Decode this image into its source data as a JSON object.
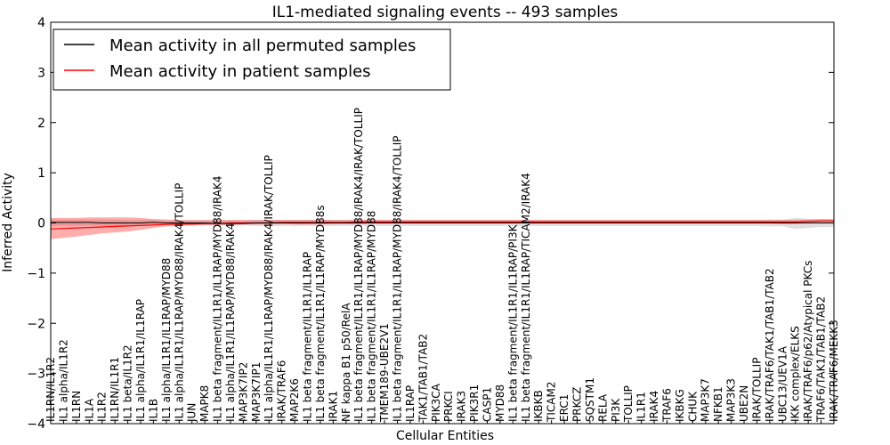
{
  "chart_data": {
    "type": "line",
    "title": "IL1-mediated signaling events -- 493 samples",
    "xlabel": "Cellular Entities",
    "ylabel": "Inferred Activity",
    "ylim": [
      -4,
      4
    ],
    "yticks": [
      -4,
      -3,
      -2,
      -1,
      0,
      1,
      2,
      3,
      4
    ],
    "ytick_labels": [
      "−4",
      "−3",
      "−2",
      "−1",
      "0",
      "1",
      "2",
      "3",
      "4"
    ],
    "grid": false,
    "legend_position": "top-left",
    "categories": [
      "IL1RN/IL1R2",
      "IL1 alpha/IL1R2",
      "IL1RN",
      "IL1A",
      "IL1R2",
      "IL1RN/IL1R1",
      "IL1 beta/IL1R2",
      "IL1 alpha/IL1R1/IL1RAP",
      "IL1B",
      "IL1 alpha/IL1R1/IL1RAP/MYD88",
      "IL1 alpha/IL1R1/IL1RAP/MYD88/IRAK4/TOLLIP",
      "JUN",
      "MAPK8",
      "IL1 beta fragment/IL1R1/IL1RAP/MYD88/IRAK4",
      "IL1 alpha/IL1R1/IL1RAP/MYD88/IRAK4",
      "MAP3K7IP2",
      "MAP3K7IP1",
      "IL1 alpha/IL1R1/IL1RAP/MYD88/IRAK4/IRAK/TOLLIP",
      "IRAK/TRAF6",
      "MAP2K6",
      "IL1 beta fragment/IL1R1/IL1RAP",
      "IL1 beta fragment/IL1R1/IL1RAP/MYD88s",
      "IRAK1",
      "NF kappa B1 p50/RelA",
      "IL1 beta fragment/IL1R1/IL1RAP/MYD88/IRAK4/IRAK/TOLLIP",
      "IL1 beta fragment/IL1R1/IL1RAP/MYD88",
      "TMEM189-UBE2V1",
      "IL1 beta fragment/IL1R1/IL1RAP/MYD88/IRAK4/TOLLIP",
      "IL1RAP",
      "TAK1/TAB1/TAB2",
      "PIK3CA",
      "PRKCI",
      "IRAK3",
      "PIK3R1",
      "CASP1",
      "MYD88",
      "IL1 beta fragment/IL1R1/IL1RAP/PI3K",
      "IL1 beta fragment/IL1R1/IL1RAP/TICAM2/IRAK4",
      "IKBKB",
      "TICAM2",
      "ERC1",
      "PRKCZ",
      "SQSTM1",
      "RELA",
      "PI3K",
      "TOLLIP",
      "IL1R1",
      "IRAK4",
      "TRAF6",
      "IKBKG",
      "CHUK",
      "MAP3K7",
      "NFKB1",
      "MAP3K3",
      "UBE2N",
      "IRAK/TOLLIP",
      "IRAK/TRAF6/TAK1/TAB1/TAB2",
      "UBC13/UEV1A",
      "IKK complex/ELKS",
      "IRAK/TRAF6/p62/Atypical PKCs",
      "TRAF6/TAK1/TAB1/TAB2",
      "IRAK/TRAF6/MEKK3"
    ],
    "series": [
      {
        "name": "Mean activity in all permuted samples",
        "color": "#000000",
        "values": [
          0.01,
          0.01,
          0.01,
          0.01,
          0.0,
          0.0,
          0.0,
          0.0,
          0.01,
          0.0,
          0.0,
          0.0,
          0.0,
          -0.01,
          -0.01,
          -0.01,
          0.0,
          0.0,
          0.0,
          0.0,
          0.0,
          0.0,
          0.0,
          0.0,
          0.0,
          0.0,
          0.0,
          0.0,
          0.0,
          0.0,
          0.0,
          0.0,
          0.0,
          0.0,
          0.0,
          0.0,
          0.0,
          0.0,
          0.0,
          0.0,
          0.0,
          0.0,
          0.0,
          0.0,
          0.0,
          0.0,
          0.0,
          0.0,
          0.0,
          0.0,
          0.0,
          0.0,
          0.0,
          0.0,
          0.0,
          0.0,
          0.0,
          0.0,
          0.0,
          0.0,
          0.0,
          0.0
        ],
        "band_lower": [
          -0.06,
          -0.06,
          -0.06,
          -0.06,
          -0.06,
          -0.06,
          -0.06,
          -0.06,
          -0.05,
          -0.05,
          -0.05,
          -0.05,
          -0.05,
          -0.05,
          -0.05,
          -0.05,
          -0.06,
          -0.06,
          -0.06,
          -0.06,
          -0.06,
          -0.06,
          -0.06,
          -0.06,
          -0.06,
          -0.06,
          -0.06,
          -0.06,
          -0.06,
          -0.06,
          -0.06,
          -0.06,
          -0.06,
          -0.06,
          -0.06,
          -0.06,
          -0.06,
          -0.06,
          -0.06,
          -0.06,
          -0.06,
          -0.06,
          -0.06,
          -0.06,
          -0.06,
          -0.06,
          -0.06,
          -0.06,
          -0.06,
          -0.06,
          -0.06,
          -0.06,
          -0.06,
          -0.06,
          -0.06,
          -0.06,
          -0.07,
          -0.07,
          -0.12,
          -0.1,
          -0.08,
          -0.08
        ],
        "band_upper": [
          0.07,
          0.07,
          0.07,
          0.07,
          0.07,
          0.07,
          0.06,
          0.06,
          0.06,
          0.05,
          0.05,
          0.05,
          0.05,
          0.05,
          0.05,
          0.05,
          0.06,
          0.06,
          0.06,
          0.06,
          0.06,
          0.06,
          0.06,
          0.06,
          0.06,
          0.06,
          0.06,
          0.06,
          0.06,
          0.06,
          0.06,
          0.06,
          0.06,
          0.06,
          0.06,
          0.06,
          0.06,
          0.06,
          0.06,
          0.06,
          0.06,
          0.06,
          0.06,
          0.06,
          0.06,
          0.06,
          0.06,
          0.06,
          0.06,
          0.06,
          0.06,
          0.06,
          0.06,
          0.06,
          0.06,
          0.06,
          0.07,
          0.07,
          0.1,
          0.08,
          0.06,
          0.06
        ]
      },
      {
        "name": "Mean activity in patient samples",
        "color": "#ff0000",
        "values": [
          -0.12,
          -0.11,
          -0.1,
          -0.09,
          -0.08,
          -0.07,
          -0.06,
          -0.05,
          -0.04,
          -0.03,
          -0.02,
          -0.02,
          -0.01,
          -0.01,
          0.0,
          0.0,
          0.0,
          0.0,
          0.01,
          0.01,
          0.01,
          0.01,
          0.01,
          0.01,
          0.02,
          0.02,
          0.02,
          0.02,
          0.02,
          0.02,
          0.02,
          0.02,
          0.02,
          0.02,
          0.02,
          0.02,
          0.02,
          0.02,
          0.02,
          0.02,
          0.02,
          0.02,
          0.02,
          0.02,
          0.02,
          0.02,
          0.02,
          0.02,
          0.02,
          0.02,
          0.02,
          0.02,
          0.02,
          0.02,
          0.02,
          0.02,
          0.02,
          0.02,
          0.02,
          0.03,
          0.04,
          0.04
        ],
        "band_lower": [
          -0.32,
          -0.3,
          -0.27,
          -0.24,
          -0.21,
          -0.19,
          -0.17,
          -0.14,
          -0.1,
          -0.07,
          -0.06,
          -0.05,
          -0.04,
          -0.04,
          -0.04,
          -0.03,
          -0.03,
          -0.03,
          -0.02,
          -0.03,
          -0.03,
          -0.03,
          -0.02,
          -0.02,
          -0.02,
          -0.01,
          -0.01,
          -0.01,
          -0.01,
          -0.01,
          -0.01,
          -0.01,
          -0.01,
          -0.01,
          -0.01,
          -0.01,
          -0.01,
          -0.01,
          -0.01,
          -0.01,
          -0.01,
          -0.01,
          -0.01,
          -0.01,
          -0.01,
          -0.01,
          -0.01,
          -0.01,
          -0.01,
          -0.01,
          -0.01,
          -0.01,
          -0.01,
          -0.01,
          -0.01,
          -0.01,
          -0.01,
          -0.02,
          -0.02,
          0.0,
          0.01,
          0.01
        ],
        "band_upper": [
          0.1,
          0.1,
          0.1,
          0.11,
          0.11,
          0.11,
          0.11,
          0.1,
          0.08,
          0.07,
          0.06,
          0.06,
          0.06,
          0.06,
          0.06,
          0.06,
          0.06,
          0.06,
          0.06,
          0.06,
          0.06,
          0.06,
          0.06,
          0.06,
          0.06,
          0.06,
          0.06,
          0.06,
          0.06,
          0.06,
          0.06,
          0.06,
          0.06,
          0.06,
          0.06,
          0.06,
          0.06,
          0.06,
          0.06,
          0.06,
          0.06,
          0.06,
          0.06,
          0.06,
          0.06,
          0.06,
          0.06,
          0.06,
          0.06,
          0.06,
          0.06,
          0.06,
          0.06,
          0.06,
          0.06,
          0.06,
          0.06,
          0.06,
          0.06,
          0.07,
          0.08,
          0.08
        ]
      }
    ]
  }
}
